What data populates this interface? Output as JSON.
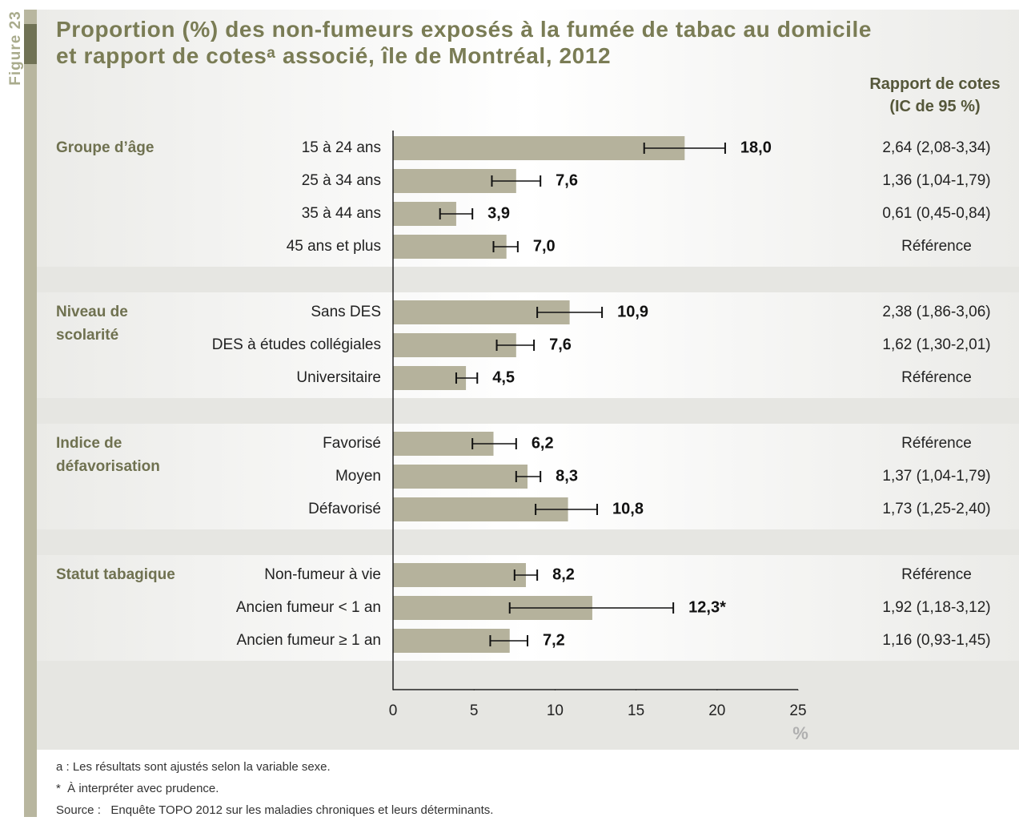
{
  "chart_data": {
    "type": "bar",
    "figure_label": "Figure 23",
    "title": "Proportion (%) des non-fumeurs exposés à la fumée de tabac au domicile\net rapport de cotesᵃ associé, île de Montréal, 2012",
    "odds_header": "Rapport de cotes\n(IC de 95 %)",
    "color": "#b5b29c",
    "xlim": [
      0,
      25
    ],
    "xticks": [
      0,
      5,
      10,
      15,
      20,
      25
    ],
    "xlabel": "%",
    "groups": [
      {
        "name": "Groupe d’âge",
        "categories": [
          "15 à 24 ans",
          "25 à 34 ans",
          "35 à 44 ans",
          "45 ans et plus"
        ],
        "values": [
          18.0,
          7.6,
          3.9,
          7.0
        ],
        "value_labels": [
          "18,0",
          "7,6",
          "3,9",
          "7,0"
        ],
        "ci_low": [
          15.5,
          6.1,
          2.9,
          6.2
        ],
        "ci_high": [
          20.5,
          9.1,
          4.9,
          7.7
        ],
        "odds": [
          "2,64 (2,08-3,34)",
          "1,36 (1,04-1,79)",
          "0,61 (0,45-0,84)",
          "Référence"
        ]
      },
      {
        "name": "Niveau de\nscolarité",
        "categories": [
          "Sans DES",
          "DES à études collégiales",
          "Universitaire"
        ],
        "values": [
          10.9,
          7.6,
          4.5
        ],
        "value_labels": [
          "10,9",
          "7,6",
          "4,5"
        ],
        "ci_low": [
          8.9,
          6.4,
          3.9
        ],
        "ci_high": [
          12.9,
          8.7,
          5.2
        ],
        "odds": [
          "2,38 (1,86-3,06)",
          "1,62 (1,30-2,01)",
          "Référence"
        ]
      },
      {
        "name": "Indice de\ndéfavorisation",
        "categories": [
          "Favorisé",
          "Moyen",
          "Défavorisé"
        ],
        "values": [
          6.2,
          8.3,
          10.8
        ],
        "value_labels": [
          "6,2",
          "8,3",
          "10,8"
        ],
        "ci_low": [
          4.9,
          7.6,
          8.8
        ],
        "ci_high": [
          7.6,
          9.1,
          12.6
        ],
        "odds": [
          "Référence",
          "1,37 (1,04-1,79)",
          "1,73 (1,25-2,40)"
        ]
      },
      {
        "name": "Statut tabagique",
        "categories": [
          "Non-fumeur à vie",
          "Ancien fumeur < 1 an",
          "Ancien fumeur ≥ 1 an"
        ],
        "values": [
          8.2,
          12.3,
          7.2
        ],
        "value_labels": [
          "8,2",
          "12,3*",
          "7,2"
        ],
        "ci_low": [
          7.5,
          7.2,
          6.0
        ],
        "ci_high": [
          8.9,
          17.3,
          8.3
        ],
        "odds": [
          "Référence",
          "1,92 (1,18-3,12)",
          "1,16 (0,93-1,45)"
        ]
      }
    ],
    "notes": [
      "a : Les résultats sont ajustés selon la variable sexe.",
      "*  À interpréter avec prudence.",
      "Source :   Enquête TOPO 2012 sur les maladies chroniques et leurs déterminants."
    ]
  }
}
